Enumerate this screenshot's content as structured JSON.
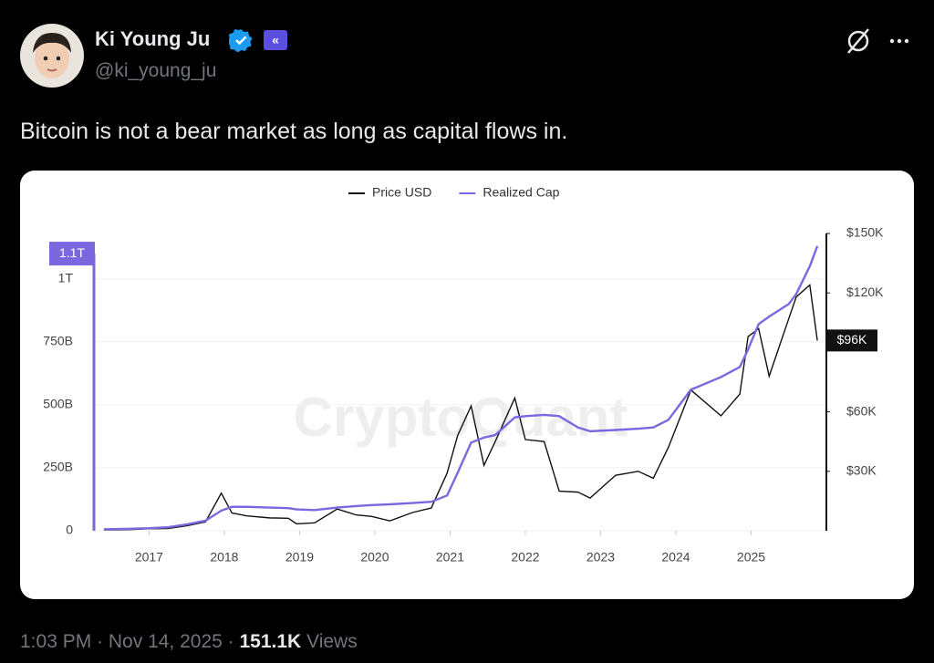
{
  "header": {
    "name": "Ki Young Ju",
    "handle": "@ki_young_ju"
  },
  "tweet": {
    "text": "Bitcoin is not a bear market as long as capital flows in."
  },
  "chart_data": {
    "type": "line",
    "watermark": "CryptoQuant",
    "x": [
      2016.4,
      2016.75,
      2017.0,
      2017.25,
      2017.5,
      2017.75,
      2017.96,
      2018.1,
      2018.3,
      2018.6,
      2018.85,
      2018.96,
      2019.2,
      2019.5,
      2019.75,
      2019.96,
      2020.2,
      2020.5,
      2020.75,
      2020.96,
      2021.1,
      2021.28,
      2021.45,
      2021.6,
      2021.86,
      2022.0,
      2022.25,
      2022.45,
      2022.7,
      2022.86,
      2023.2,
      2023.5,
      2023.7,
      2023.9,
      2024.2,
      2024.6,
      2024.85,
      2024.96,
      2025.1,
      2025.24,
      2025.5,
      2025.6,
      2025.78,
      2025.88
    ],
    "series": [
      {
        "name": "Price USD",
        "color": "#111111",
        "axis": "y2",
        "values": [
          450,
          600,
          1000,
          1100,
          2500,
          4500,
          19000,
          9000,
          7500,
          6500,
          6300,
          3500,
          4000,
          11000,
          8000,
          7200,
          5000,
          9200,
          11500,
          29000,
          48000,
          63000,
          33000,
          45000,
          67000,
          46000,
          45000,
          20000,
          19500,
          16500,
          28000,
          30000,
          26500,
          42000,
          71000,
          58000,
          69000,
          98000,
          102000,
          78000,
          107000,
          118000,
          124000,
          96000
        ]
      },
      {
        "name": "Realized Cap",
        "color": "#7b68e0",
        "values": [
          6,
          8,
          10,
          14,
          25,
          40,
          80,
          95,
          95,
          92,
          90,
          85,
          82,
          92,
          98,
          102,
          105,
          110,
          115,
          140,
          230,
          350,
          370,
          380,
          450,
          455,
          460,
          455,
          410,
          395,
          400,
          405,
          410,
          440,
          560,
          610,
          650,
          720,
          820,
          850,
          900,
          940,
          1050,
          1130
        ]
      }
    ],
    "xlim": [
      2016.28,
      2026.0
    ],
    "xticks": [
      2017,
      2018,
      2019,
      2020,
      2021,
      2022,
      2023,
      2024,
      2025
    ],
    "ylim": [
      0,
      1180
    ],
    "yticks": [
      0,
      {
        "value": 250,
        "label": "250B"
      },
      {
        "value": 500,
        "label": "500B"
      },
      {
        "value": 750,
        "label": "750B"
      },
      {
        "value": 1000,
        "label": "1T"
      }
    ],
    "y2lim": [
      0,
      150000
    ],
    "y2ticks": [
      {
        "value": 30000,
        "label": "$30K"
      },
      {
        "value": 60000,
        "label": "$60K"
      },
      {
        "value": 120000,
        "label": "$120K"
      },
      {
        "value": 150000,
        "label": "$150K"
      }
    ],
    "y_marker": {
      "value": 1100,
      "label": "1.1T"
    },
    "y2_marker": {
      "value": 96000,
      "label": "$96K"
    },
    "grid": true
  },
  "footer": {
    "time": "1:03 PM",
    "date": "Nov 14, 2025",
    "views": "151.1K",
    "views_label": "Views"
  }
}
